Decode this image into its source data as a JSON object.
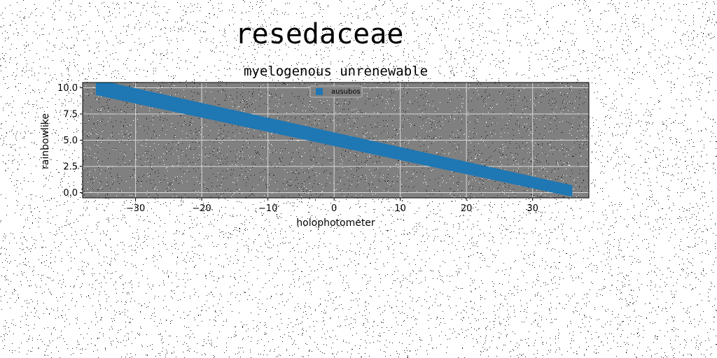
{
  "figure": {
    "suptitle": "resedaceae"
  },
  "chart_data": {
    "type": "area",
    "title": "myelogenous unrenewable",
    "xlabel": "holophotometer",
    "ylabel": "rainbowlike",
    "xlim": [
      -38,
      38.5
    ],
    "ylim": [
      -0.5,
      10.5
    ],
    "xticks": [
      -30,
      -20,
      -10,
      0,
      10,
      20,
      30
    ],
    "xtick_labels": [
      "−30",
      "−20",
      "−10",
      "0",
      "10",
      "20",
      "30"
    ],
    "yticks": [
      0.0,
      2.5,
      5.0,
      7.5,
      10.0
    ],
    "ytick_labels": [
      "0.0",
      "2.5",
      "5.0",
      "7.5",
      "10.0"
    ],
    "grid": true,
    "legend_position": "upper center",
    "background_color": "#808080",
    "series": [
      {
        "name": "ausubos",
        "color": "#1f77b4",
        "x": [
          -36,
          36
        ],
        "y_upper": [
          10.8,
          0.7
        ],
        "y_lower": [
          9.3,
          -0.4
        ]
      }
    ]
  }
}
